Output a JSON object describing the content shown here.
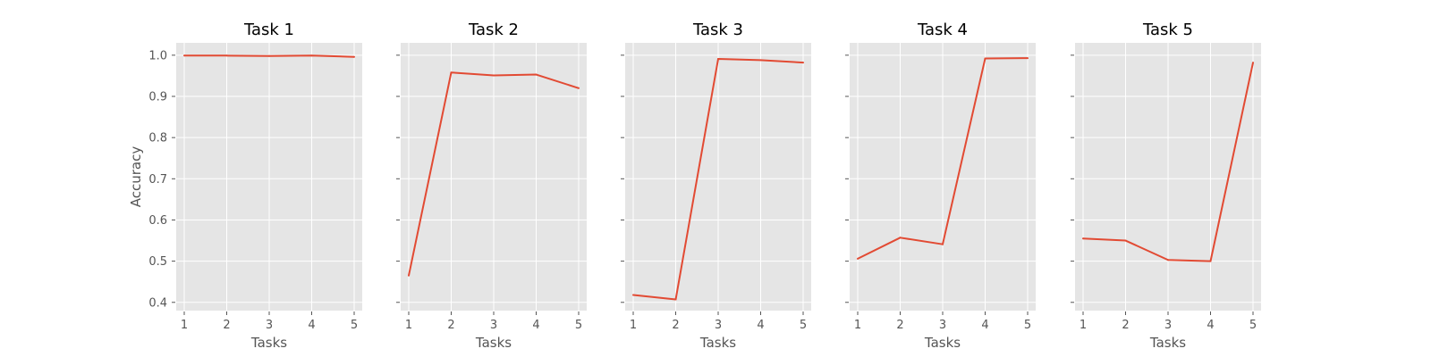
{
  "chart_data": [
    {
      "type": "line",
      "title": "Task 1",
      "xlabel": "Tasks",
      "ylabel": "Accuracy",
      "x": [
        1,
        2,
        3,
        4,
        5
      ],
      "series": [
        {
          "values": [
            0.999,
            0.999,
            0.998,
            0.999,
            0.996
          ]
        }
      ],
      "ylim": [
        0.38,
        1.03
      ],
      "yticks": [
        "0.4",
        "0.5",
        "0.6",
        "0.7",
        "0.8",
        "0.9",
        "1.0"
      ],
      "grid": true
    },
    {
      "type": "line",
      "title": "Task 2",
      "xlabel": "Tasks",
      "ylabel": "",
      "x": [
        1,
        2,
        3,
        4,
        5
      ],
      "series": [
        {
          "values": [
            0.465,
            0.958,
            0.951,
            0.953,
            0.92
          ]
        }
      ],
      "ylim": [
        0.38,
        1.03
      ],
      "yticks": [],
      "grid": true
    },
    {
      "type": "line",
      "title": "Task 3",
      "xlabel": "Tasks",
      "ylabel": "",
      "x": [
        1,
        2,
        3,
        4,
        5
      ],
      "series": [
        {
          "values": [
            0.418,
            0.407,
            0.991,
            0.988,
            0.982
          ]
        }
      ],
      "ylim": [
        0.38,
        1.03
      ],
      "yticks": [],
      "grid": true
    },
    {
      "type": "line",
      "title": "Task 4",
      "xlabel": "Tasks",
      "ylabel": "",
      "x": [
        1,
        2,
        3,
        4,
        5
      ],
      "series": [
        {
          "values": [
            0.506,
            0.557,
            0.541,
            0.992,
            0.993
          ]
        }
      ],
      "ylim": [
        0.38,
        1.03
      ],
      "yticks": [],
      "grid": true
    },
    {
      "type": "line",
      "title": "Task 5",
      "xlabel": "Tasks",
      "ylabel": "",
      "x": [
        1,
        2,
        3,
        4,
        5
      ],
      "series": [
        {
          "values": [
            0.555,
            0.55,
            0.503,
            0.5,
            0.982
          ]
        }
      ],
      "ylim": [
        0.38,
        1.03
      ],
      "yticks": [],
      "grid": true
    }
  ],
  "colors": {
    "line": "#e24a33",
    "panel_bg": "#e5e5e5",
    "grid": "#ffffff",
    "tick_text": "#555555",
    "label_text": "#555555"
  }
}
